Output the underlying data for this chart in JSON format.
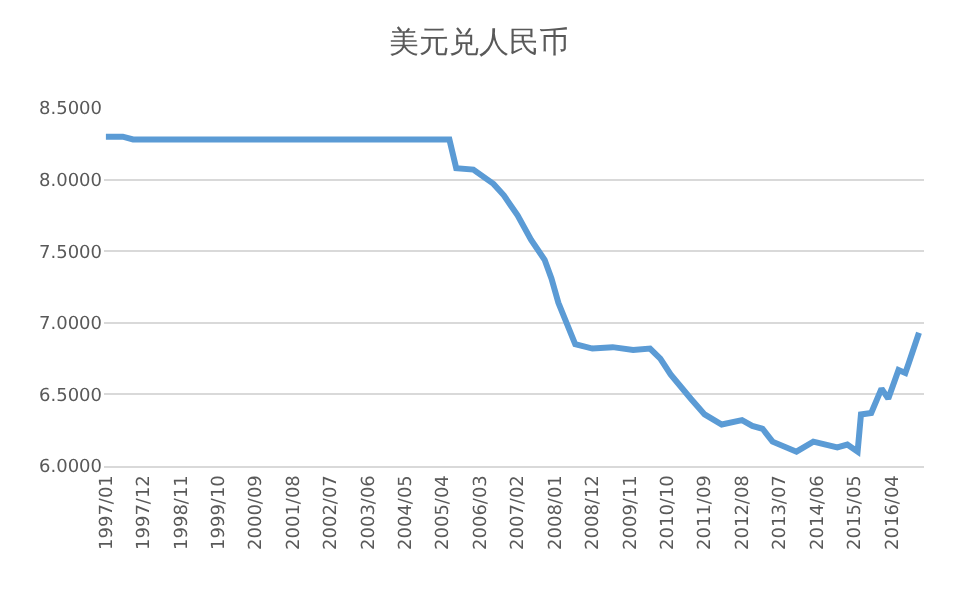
{
  "chart_data": {
    "type": "line",
    "title": "美元兑人民币",
    "x": [
      "1997-01",
      "1997-06",
      "1997-09",
      "2005-06",
      "2005-08",
      "2006-01",
      "2006-07",
      "2006-10",
      "2007-02",
      "2007-06",
      "2007-10",
      "2007-12",
      "2008-02",
      "2008-07",
      "2008-12",
      "2009-06",
      "2009-12",
      "2010-05",
      "2010-08",
      "2010-11",
      "2011-05",
      "2011-09",
      "2012-02",
      "2012-08",
      "2012-11",
      "2013-02",
      "2013-05",
      "2013-12",
      "2014-05",
      "2014-12",
      "2015-03",
      "2015-06",
      "2015-07",
      "2015-10",
      "2016-01",
      "2016-03",
      "2016-06",
      "2016-08",
      "2016-09",
      "2016-12"
    ],
    "series": [
      {
        "color": "#5b9bd5",
        "values": [
          8.3,
          8.3,
          8.28,
          8.28,
          8.08,
          8.07,
          7.97,
          7.89,
          7.75,
          7.58,
          7.44,
          7.31,
          7.14,
          6.85,
          6.82,
          6.83,
          6.81,
          6.82,
          6.75,
          6.64,
          6.47,
          6.36,
          6.29,
          6.32,
          6.28,
          6.26,
          6.17,
          6.1,
          6.17,
          6.13,
          6.15,
          6.1,
          6.36,
          6.37,
          6.54,
          6.47,
          6.67,
          6.65,
          6.72,
          6.93
        ]
      }
    ],
    "xlim": [
      "1996-12-15",
      "2017-01-15"
    ],
    "xticks": [
      {
        "value": "1997-01",
        "label": "1997/01"
      },
      {
        "value": "1997-12",
        "label": "1997/12"
      },
      {
        "value": "1998-11",
        "label": "1998/11"
      },
      {
        "value": "1999-10",
        "label": "1999/10"
      },
      {
        "value": "2000-09",
        "label": "2000/09"
      },
      {
        "value": "2001-08",
        "label": "2001/08"
      },
      {
        "value": "2002-07",
        "label": "2002/07"
      },
      {
        "value": "2003-06",
        "label": "2003/06"
      },
      {
        "value": "2004-05",
        "label": "2004/05"
      },
      {
        "value": "2005-04",
        "label": "2005/04"
      },
      {
        "value": "2006-03",
        "label": "2006/03"
      },
      {
        "value": "2007-02",
        "label": "2007/02"
      },
      {
        "value": "2008-01",
        "label": "2008/01"
      },
      {
        "value": "2008-12",
        "label": "2008/12"
      },
      {
        "value": "2009-11",
        "label": "2009/11"
      },
      {
        "value": "2010-10",
        "label": "2010/10"
      },
      {
        "value": "2011-09",
        "label": "2011/09"
      },
      {
        "value": "2012-08",
        "label": "2012/08"
      },
      {
        "value": "2013-07",
        "label": "2013/07"
      },
      {
        "value": "2014-06",
        "label": "2014/06"
      },
      {
        "value": "2015-05",
        "label": "2015/05"
      },
      {
        "value": "2016-04",
        "label": "2016/04"
      }
    ],
    "ylim": [
      6.0,
      8.5
    ],
    "yticks": [
      {
        "value": 6.0,
        "label": "6.0000"
      },
      {
        "value": 6.5,
        "label": "6.5000"
      },
      {
        "value": 7.0,
        "label": "7.0000"
      },
      {
        "value": 7.5,
        "label": "7.5000"
      },
      {
        "value": 8.0,
        "label": "8.0000"
      },
      {
        "value": 8.5,
        "label": "8.5000"
      }
    ],
    "grid": "y",
    "marker": "none",
    "line_style": "solid"
  }
}
